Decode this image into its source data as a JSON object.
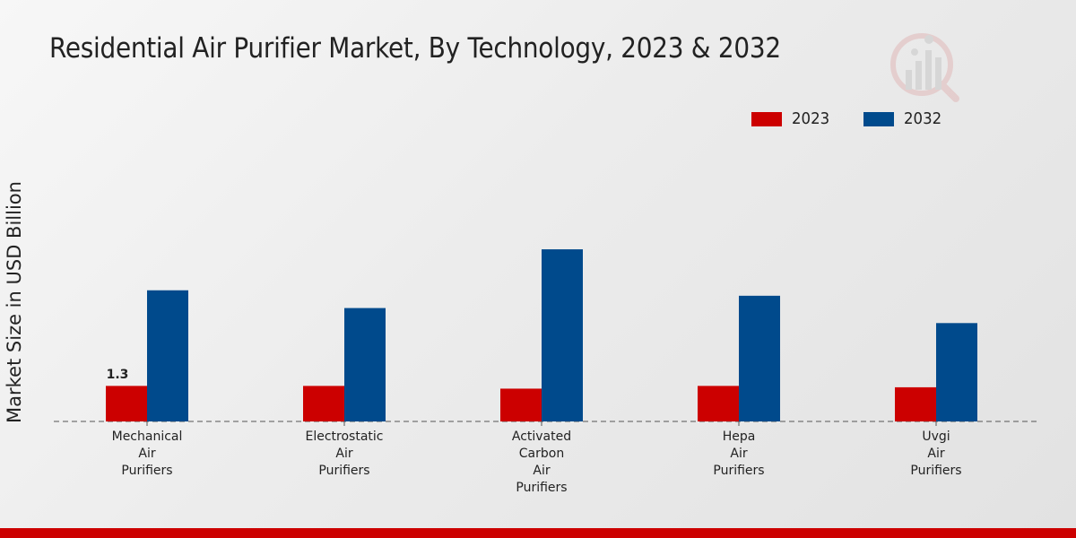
{
  "title": "Residential Air Purifier Market, By Technology, 2023 & 2032",
  "logo": {
    "icon": "analytics-logo-icon"
  },
  "colors": {
    "series_2023": "#cc0000",
    "series_2032": "#004a8c",
    "accent_bar": "#cc0000"
  },
  "chart_data": {
    "type": "bar",
    "title": "Residential Air Purifier Market, By Technology, 2023 & 2032",
    "xlabel": "",
    "ylabel": "Market Size in USD Billion",
    "ylim": [
      0,
      6.5
    ],
    "grid": false,
    "legend_position": "top-right",
    "categories": [
      "Mechanical\nAir\nPurifiers",
      "Electrostatic\nAir\nPurifiers",
      "Activated\nCarbon\nAir\nPurifiers",
      "Hepa\nAir\nPurifiers",
      "Uvgi\nAir\nPurifiers"
    ],
    "series": [
      {
        "name": "2023",
        "color": "#cc0000",
        "values": [
          1.3,
          1.3,
          1.2,
          1.3,
          1.25
        ]
      },
      {
        "name": "2032",
        "color": "#004a8c",
        "values": [
          4.8,
          4.15,
          6.3,
          4.6,
          3.6
        ]
      }
    ],
    "data_labels": [
      {
        "series": "2023",
        "index": 0,
        "text": "1.3"
      }
    ]
  }
}
